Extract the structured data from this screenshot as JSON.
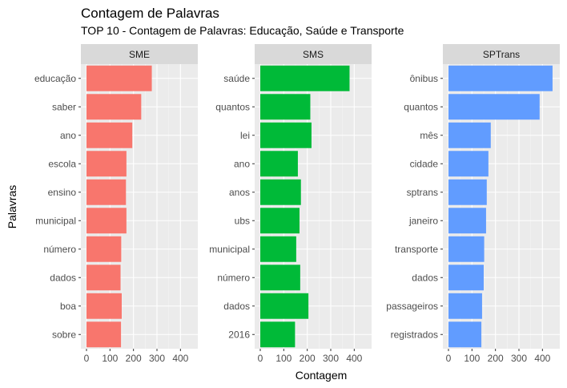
{
  "chart_data": {
    "type": "bar",
    "orientation": "horizontal",
    "title": "Contagem de Palavras",
    "subtitle": "TOP 10 - Contagem de Palavras: Educação, Saúde e Transporte",
    "xlabel": "Contagem",
    "ylabel": "Palavras",
    "xlim": [
      0,
      450
    ],
    "xticks": [
      "0",
      "100",
      "200",
      "300",
      "400"
    ],
    "grid": true,
    "facets": [
      {
        "name": "SME",
        "color": "#F8766D",
        "categories": [
          "educação",
          "saber",
          "ano",
          "escola",
          "ensino",
          "municipal",
          "número",
          "dados",
          "boa",
          "sobre"
        ],
        "values": [
          278,
          233,
          195,
          170,
          168,
          170,
          148,
          145,
          150,
          147
        ]
      },
      {
        "name": "SMS",
        "color": "#00BA38",
        "categories": [
          "saúde",
          "quantos",
          "lei",
          "ano",
          "anos",
          "ubs",
          "municipal",
          "número",
          "dados",
          "2016"
        ],
        "values": [
          380,
          213,
          218,
          160,
          173,
          167,
          153,
          170,
          205,
          148
        ]
      },
      {
        "name": "SPTrans",
        "color": "#619CFF",
        "categories": [
          "ônibus",
          "quantos",
          "mês",
          "cidade",
          "sptrans",
          "janeiro",
          "transporte",
          "dados",
          "passageiros",
          "registrados"
        ],
        "values": [
          443,
          388,
          180,
          170,
          163,
          160,
          152,
          150,
          143,
          140
        ]
      }
    ]
  }
}
